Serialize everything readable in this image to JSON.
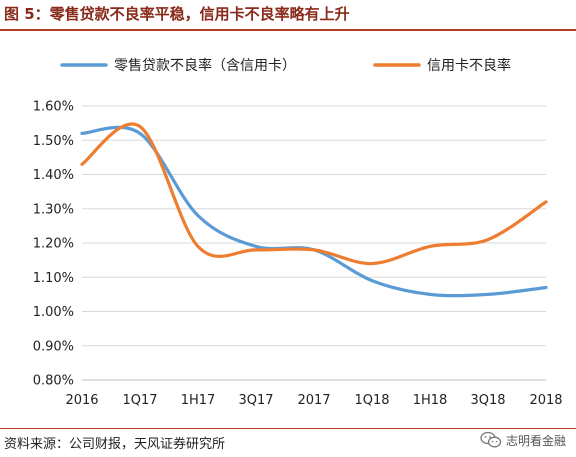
{
  "header": {
    "title": "图 5：零售贷款不良率平稳，信用卡不良率略有上升"
  },
  "footer": {
    "source": "资料来源：公司财报，天风证券研究所",
    "watermark": "志明看金融"
  },
  "icons": {
    "watermark_icon": "wechat-icon"
  },
  "chart_data": {
    "type": "line",
    "categories": [
      "2016",
      "1Q17",
      "1H17",
      "3Q17",
      "2017",
      "1Q18",
      "1H18",
      "3Q18",
      "2018"
    ],
    "y_ticks": [
      "0.80%",
      "0.90%",
      "1.00%",
      "1.10%",
      "1.20%",
      "1.30%",
      "1.40%",
      "1.50%",
      "1.60%"
    ],
    "ylim": [
      0.8,
      1.6
    ],
    "y_unit": "%",
    "grid": true,
    "legend_position": "top",
    "series": [
      {
        "name": "零售贷款不良率（含信用卡）",
        "color": "#5b9bd5",
        "values": [
          1.52,
          1.52,
          1.28,
          1.19,
          1.18,
          1.09,
          1.05,
          1.05,
          1.07
        ]
      },
      {
        "name": "信用卡不良率",
        "color": "#ed7d31",
        "values": [
          1.43,
          1.54,
          1.19,
          1.18,
          1.18,
          1.14,
          1.19,
          1.21,
          1.32
        ]
      }
    ]
  }
}
